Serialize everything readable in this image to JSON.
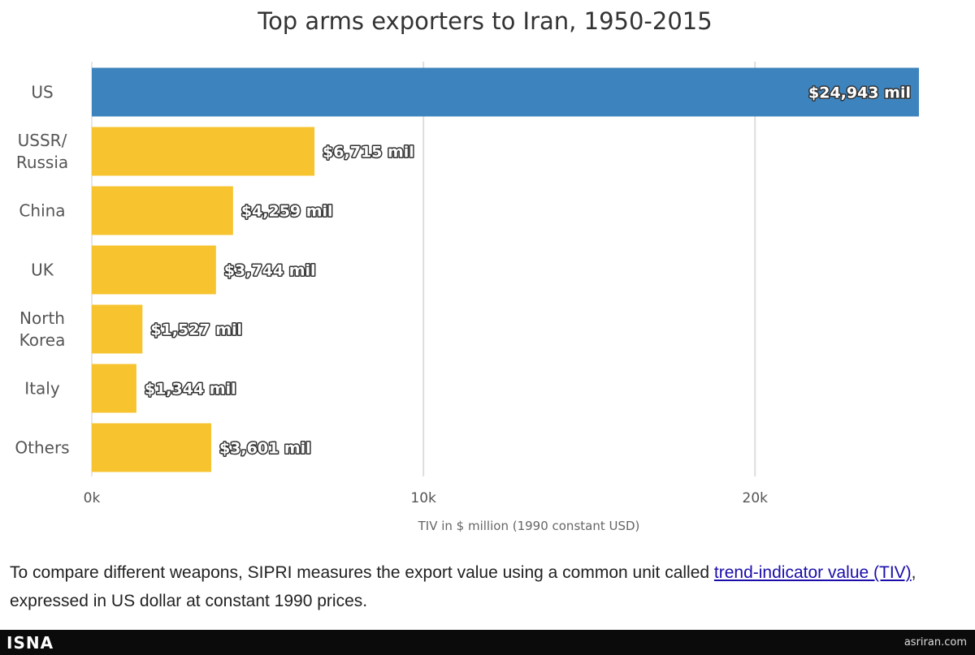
{
  "chart_data": {
    "type": "bar",
    "orientation": "horizontal",
    "title": "Top arms exporters to Iran, 1950-2015",
    "categories": [
      {
        "lines": [
          "US"
        ]
      },
      {
        "lines": [
          "USSR/",
          "Russia"
        ]
      },
      {
        "lines": [
          "China"
        ]
      },
      {
        "lines": [
          "UK"
        ]
      },
      {
        "lines": [
          "North",
          "Korea"
        ]
      },
      {
        "lines": [
          "Italy"
        ]
      },
      {
        "lines": [
          "Others"
        ]
      }
    ],
    "values": [
      24943,
      6715,
      4259,
      3744,
      1527,
      1344,
      3601
    ],
    "data_labels": [
      "$24,943 mil",
      "$6,715 mil",
      "$4,259 mil",
      "$3,744 mil",
      "$1,527 mil",
      "$1,344 mil",
      "$3,601 mil"
    ],
    "colors": [
      "#3d84bf",
      "#f7c32e",
      "#f7c32e",
      "#f7c32e",
      "#f7c32e",
      "#f7c32e",
      "#f7c32e"
    ],
    "xlim": [
      0,
      25000
    ],
    "ticks": [
      0,
      10000,
      20000
    ],
    "tick_labels": [
      "0k",
      "10k",
      "20k"
    ],
    "xlabel": "TIV in $ million (1990 constant USD)",
    "grid": true,
    "legend": "none"
  },
  "caption": {
    "before": "To compare different weapons, SIPRI measures the export value using a common unit called ",
    "link": "trend-indicator value (TIV)",
    "after": ", expressed in US dollar at constant 1990 prices."
  },
  "footer": {
    "logo": "ISNA",
    "site": "asriran.com"
  },
  "colors": {
    "grid": "#dddddd",
    "axis": "#cccccc",
    "footer_bg": "#0b0b0b"
  }
}
